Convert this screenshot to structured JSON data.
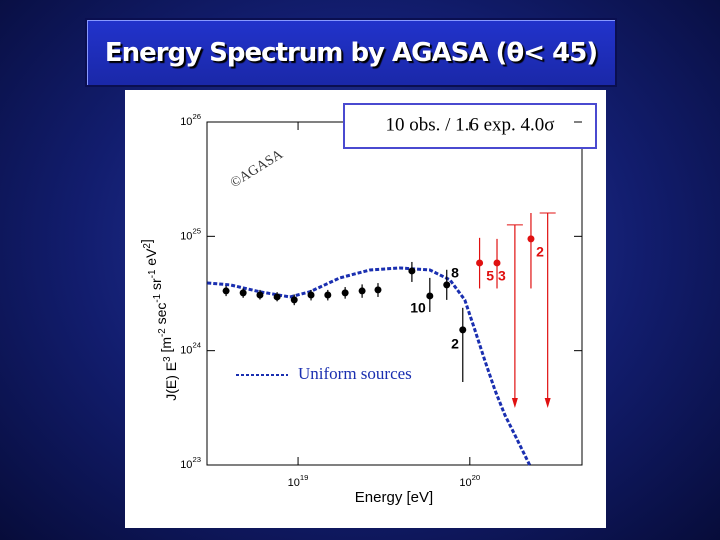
{
  "title": "Energy Spectrum by AGASA (θ< 45)",
  "chart_data": {
    "type": "scatter",
    "box_text": "10 obs. / 1.6 exp.   4.0σ",
    "watermark": "©AGASA",
    "x_label": "Energy [eV]",
    "y_label": "J(E) E^3 [m^-2 sec^-1 sr^-1 eV^2]",
    "log_x": true,
    "log_y": true,
    "xlim": [
      2.95e+18,
      4.5e+20
    ],
    "ylim": [
      1e+23,
      1e+26
    ],
    "xticks": [
      {
        "value": 1e+19,
        "label": "10^19"
      },
      {
        "value": 1e+20,
        "label": "10^20"
      }
    ],
    "yticks": [
      {
        "value": 1e+23,
        "label": "10^23"
      },
      {
        "value": 1e+24,
        "label": "10^24"
      },
      {
        "value": 1e+25,
        "label": "10^25"
      },
      {
        "value": 1e+26,
        "label": "10^26"
      }
    ],
    "points": [
      {
        "color": "#000000",
        "x": [
          3.81e+18,
          4.79e+18,
          6e+18,
          7.55e+18,
          9.5e+18,
          1.19e+19,
          1.49e+19,
          1.88e+19,
          2.36e+19,
          2.92e+19,
          4.6e+19,
          5.85e+19,
          7.34e+19,
          9.1e+19
        ],
        "values": [
          3.33e+24,
          3.2e+24,
          3.07e+24,
          2.95e+24,
          2.78e+24,
          3.07e+24,
          3.07e+24,
          3.2e+24,
          3.33e+24,
          3.4e+24,
          4.98e+24,
          3.01e+24,
          3.76e+24,
          1.52e+24
        ],
        "lower": [
          3e+24,
          2.9e+24,
          2.8e+24,
          2.7e+24,
          2.5e+24,
          2.75e+24,
          2.75e+24,
          2.85e+24,
          2.9e+24,
          2.95e+24,
          3.99e+24,
          2.18e+24,
          2.78e+24,
          5.32e+23
        ],
        "upper": [
          3.7e+24,
          3.5e+24,
          3.4e+24,
          3.25e+24,
          3.1e+24,
          3.4e+24,
          3.4e+24,
          3.6e+24,
          3.8e+24,
          3.9e+24,
          5.97e+24,
          4.33e+24,
          5.1e+24,
          2.37e+24
        ]
      },
      {
        "color": "#e01010",
        "x": [
          1.14e+20,
          1.44e+20,
          2.27e+20
        ],
        "values": [
          5.85e+24,
          5.85e+24,
          9.5e+24
        ],
        "lower": [
          3.5e+24,
          3.5e+24,
          3.5e+24
        ],
        "upper": [
          9.7e+24,
          9.5e+24,
          1.6e+25
        ]
      }
    ],
    "upper_limits": {
      "color": "#e01010",
      "x": [
        1.83e+20,
        2.84e+20
      ],
      "values": [
        1.26e+25,
        1.6e+25
      ]
    },
    "series": [
      {
        "name": "Uniform sources",
        "color": "#1a2fb0",
        "x": [
          2.96e+18,
          4.03e+18,
          6.01e+18,
          8.97e+18,
          1.17e+19,
          1.75e+19,
          2.62e+19,
          3.92e+19,
          5.85e+19,
          7.66e+19,
          9.35e+19,
          1.07e+20,
          1.22e+20,
          1.4e+20,
          1.6e+20,
          1.83e+20,
          2.09e+20,
          2.23e+20
        ],
        "values": [
          3.91e+24,
          3.76e+24,
          3.27e+24,
          2.95e+24,
          3.27e+24,
          4.33e+24,
          5.08e+24,
          5.29e+24,
          5.08e+24,
          4.16e+24,
          2.78e+24,
          1.52e+24,
          8.3e+23,
          4.53e+23,
          2.74e+23,
          1.83e+23,
          1.22e+23,
          1e+23
        ]
      }
    ],
    "annotations": [
      {
        "text": "8",
        "color": "#000000"
      },
      {
        "text": "10",
        "color": "#000000"
      },
      {
        "text": "2",
        "color": "#000000"
      },
      {
        "text": "5 3",
        "color": "#e01010"
      },
      {
        "text": "2",
        "color": "#e01010"
      }
    ]
  }
}
